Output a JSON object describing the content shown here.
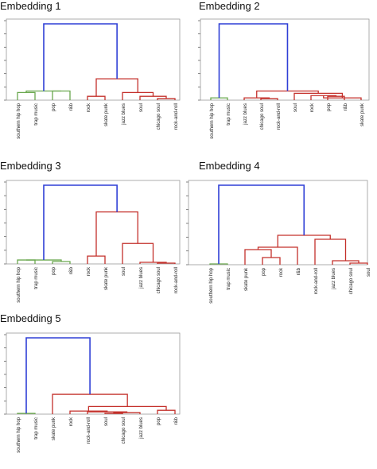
{
  "colors": {
    "cluster_link": "#2f3fd6",
    "group_a": "#6aa84f",
    "group_b": "#c4302b",
    "group_b_light": "#e58b8b",
    "axes": "#9a9a9a"
  },
  "chart_data": [
    {
      "type": "dendrogram",
      "title": "Embedding 1",
      "leaves": [
        "southern hip hop",
        "trap music",
        "pop",
        "r&b",
        "rock",
        "skate punk",
        "jazz blues",
        "soul",
        "chicago soul",
        "rock-and-roll"
      ],
      "merges": [
        {
          "a": 8,
          "b": 9,
          "height": 0.02,
          "color": "red"
        },
        {
          "a": 7,
          "b": "m0",
          "height": 0.05,
          "color": "red"
        },
        {
          "a": 0,
          "b": 1,
          "height": 0.1,
          "color": "green"
        },
        {
          "a": 6,
          "b": "m1",
          "height": 0.1,
          "color": "red"
        },
        {
          "a": 2,
          "b": 3,
          "height": 0.12,
          "color": "green"
        },
        {
          "a": 4,
          "b": 5,
          "height": 0.05,
          "color": "red"
        },
        {
          "a": "m2",
          "b": "m4",
          "height": 0.12,
          "color": "green"
        },
        {
          "a": "m5",
          "b": "m3",
          "height": 0.28,
          "color": "red"
        },
        {
          "a": "m6",
          "b": "m7",
          "height": 1.0,
          "color": "blue"
        }
      ]
    },
    {
      "type": "dendrogram",
      "title": "Embedding 2",
      "leaves": [
        "southern hip hop",
        "trap music",
        "jazz blues",
        "chicago soul",
        "rock-and-roll",
        "soul",
        "rock",
        "pop",
        "r&b",
        "skate punk"
      ],
      "merges": [
        {
          "a": 3,
          "b": 4,
          "height": 0.02,
          "color": "red"
        },
        {
          "a": 2,
          "b": "m0",
          "height": 0.03,
          "color": "red"
        },
        {
          "a": 7,
          "b": 8,
          "height": 0.05,
          "color": "red"
        },
        {
          "a": 6,
          "b": "m2",
          "height": 0.06,
          "color": "red"
        },
        {
          "a": "m3",
          "b": 9,
          "height": 0.03,
          "color": "red"
        },
        {
          "a": 5,
          "b": "m4",
          "height": 0.09,
          "color": "red"
        },
        {
          "a": "m1",
          "b": "m5",
          "height": 0.12,
          "color": "red"
        },
        {
          "a": 0,
          "b": 1,
          "height": 0.03,
          "color": "green"
        },
        {
          "a": "m7",
          "b": "m6",
          "height": 1.0,
          "color": "blue"
        }
      ]
    },
    {
      "type": "dendrogram",
      "title": "Embedding 3",
      "leaves": [
        "southern hip hop",
        "trap music",
        "pop",
        "r&b",
        "rock",
        "skate punk",
        "soul",
        "jazz blues",
        "chicago soul",
        "rock-and-roll"
      ],
      "merges": [
        {
          "a": 8,
          "b": 9,
          "height": 0.01,
          "color": "red"
        },
        {
          "a": 7,
          "b": "m0",
          "height": 0.02,
          "color": "red"
        },
        {
          "a": 2,
          "b": 3,
          "height": 0.03,
          "color": "green"
        },
        {
          "a": 0,
          "b": 1,
          "height": 0.05,
          "color": "green"
        },
        {
          "a": "m3",
          "b": "m2",
          "height": 0.05,
          "color": "green"
        },
        {
          "a": 4,
          "b": 5,
          "height": 0.1,
          "color": "red"
        },
        {
          "a": 6,
          "b": "m1",
          "height": 0.26,
          "color": "red"
        },
        {
          "a": "m5",
          "b": "m6",
          "height": 0.66,
          "color": "red"
        },
        {
          "a": "m4",
          "b": "m7",
          "height": 1.0,
          "color": "blue"
        }
      ]
    },
    {
      "type": "dendrogram",
      "title": "Embedding 4",
      "leaves": [
        "southern hip hop",
        "trap music",
        "skate punk",
        "pop",
        "rock",
        "r&b",
        "rock-and-roll",
        "jazz blues",
        "chicago soul",
        "soul"
      ],
      "merges": [
        {
          "a": 8,
          "b": 9,
          "height": 0.02,
          "color": "red"
        },
        {
          "a": 7,
          "b": "m0",
          "height": 0.05,
          "color": "red"
        },
        {
          "a": 3,
          "b": 4,
          "height": 0.09,
          "color": "red"
        },
        {
          "a": 2,
          "b": "m2",
          "height": 0.19,
          "color": "red"
        },
        {
          "a": "m3",
          "b": 5,
          "height": 0.22,
          "color": "red"
        },
        {
          "a": 6,
          "b": "m1",
          "height": 0.32,
          "color": "red"
        },
        {
          "a": "m4",
          "b": "m5",
          "height": 0.37,
          "color": "red"
        },
        {
          "a": 0,
          "b": 1,
          "height": 0.01,
          "color": "green"
        },
        {
          "a": "m7",
          "b": "m6",
          "height": 1.0,
          "color": "blue"
        }
      ]
    },
    {
      "type": "dendrogram",
      "title": "Embedding 5",
      "leaves": [
        "southern hip hop",
        "trap music",
        "skate punk",
        "rock",
        "rock-and-roll",
        "soul",
        "chicago soul",
        "jazz blues",
        "pop",
        "r&b"
      ],
      "merges": [
        {
          "a": 5,
          "b": 6,
          "height": 0.01,
          "color": "red"
        },
        {
          "a": "m0",
          "b": 7,
          "height": 0.02,
          "color": "red"
        },
        {
          "a": 4,
          "b": "m1",
          "height": 0.03,
          "color": "red"
        },
        {
          "a": 3,
          "b": "m2",
          "height": 0.04,
          "color": "red"
        },
        {
          "a": 8,
          "b": 9,
          "height": 0.05,
          "color": "red"
        },
        {
          "a": "m3",
          "b": "m4",
          "height": 0.1,
          "color": "red"
        },
        {
          "a": 2,
          "b": "m5",
          "height": 0.26,
          "color": "red"
        },
        {
          "a": 0,
          "b": 1,
          "height": 0.01,
          "color": "green"
        },
        {
          "a": "m7",
          "b": "m6",
          "height": 1.0,
          "color": "blue"
        }
      ]
    }
  ]
}
